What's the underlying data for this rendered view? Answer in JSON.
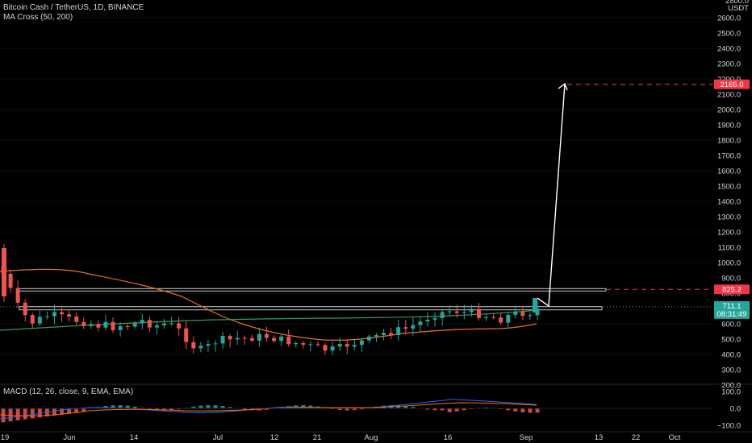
{
  "header": {
    "symbol_line": "Bitcoin Cash / TetherUS, 1D, BINANCE",
    "indicator_line": "MA Cross (50, 200)",
    "macd_label": "MACD (12, 26, close, 9, EMA, EMA)"
  },
  "price_axis": {
    "currency": "USDT",
    "top_partial": "2800.0",
    "ticks": [
      "2600.0",
      "2500.0",
      "2400.0",
      "2300.0",
      "2200.0",
      "2100.0",
      "2000.0",
      "1900.0",
      "1800.0",
      "1700.0",
      "1600.0",
      "1500.0",
      "1400.0",
      "1300.0",
      "1200.0",
      "1100.0",
      "1000.0",
      "900.0",
      "800.0",
      "700.0",
      "600.0",
      "500.0",
      "400.0",
      "300.0",
      "200.0"
    ]
  },
  "price_tags": {
    "target": "2165.0",
    "resistance": "825.2",
    "current_price": "711.1",
    "countdown": "08:31:49"
  },
  "macd_axis": {
    "ticks": [
      "100.0",
      "0.0",
      "−100.0"
    ]
  },
  "time_axis": {
    "labels": [
      "19",
      "Jun",
      "14",
      "Jul",
      "12",
      "21",
      "Aug",
      "16",
      "Sep",
      "13",
      "22",
      "Oct"
    ]
  },
  "colors": {
    "up": "#26a69a",
    "down": "#ef5350",
    "ma_fast": "#2e9e5b",
    "ma_slow": "#e8702a",
    "target_line": "#f23645",
    "current_tag": "#26a69a",
    "macd_line": "#2962ff",
    "signal_line": "#ff6d00"
  },
  "chart_data": {
    "type": "candlestick",
    "price_range": [
      200,
      2700
    ],
    "current_price": 711.1,
    "target_price": 2165.0,
    "resistance_level": 825.2,
    "support_zone": [
      700,
      712
    ],
    "series": [
      {
        "name": "BCHUSDT daily (approx close)",
        "values": [
          1100,
          980,
          870,
          700,
          760,
          640,
          720,
          730,
          700,
          690,
          690,
          650,
          640,
          620,
          610,
          600,
          610,
          590,
          560,
          450,
          500,
          510,
          520,
          500,
          480,
          460,
          440,
          420,
          410,
          450,
          480,
          540,
          560,
          600,
          620,
          640,
          660,
          700,
          690,
          700,
          680,
          640,
          670,
          711
        ]
      },
      {
        "name": "MA 50",
        "values": [
          620,
          610,
          600,
          600,
          595,
          590,
          585,
          580,
          575,
          570,
          570,
          575,
          590,
          605,
          615,
          620,
          630,
          640,
          650,
          660,
          670,
          690,
          700,
          710
        ]
      },
      {
        "name": "MA 200",
        "values": [
          1000,
          990,
          960,
          920,
          850,
          780,
          700,
          640,
          600,
          580,
          560,
          540,
          525,
          510,
          500,
          500,
          510,
          530,
          545,
          555,
          565,
          575
        ]
      }
    ]
  }
}
